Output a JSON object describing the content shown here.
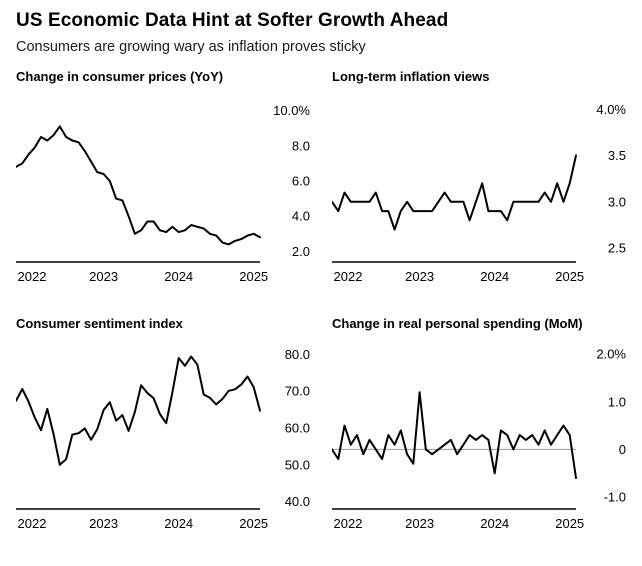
{
  "header": {
    "title": "US Economic Data Hint at Softer Growth Ahead",
    "subtitle": "Consumers are growing wary as inflation proves sticky"
  },
  "colors": {
    "line": "#000000",
    "axis": "#000000",
    "zero_line": "#999999",
    "background": "#ffffff",
    "text": "#000000"
  },
  "chart_data": [
    {
      "type": "line",
      "title": "Change in consumer prices (YoY)",
      "frequency": "monthly",
      "x_tick_labels": [
        "2022",
        "2023",
        "2024",
        "2025"
      ],
      "x_tick_positions": [
        2,
        14,
        26,
        38
      ],
      "y_ticks": [
        10.0,
        8.0,
        6.0,
        4.0,
        2.0
      ],
      "y_tick_labels": [
        "10.0%",
        "8.0",
        "6.0",
        "4.0",
        "2.0"
      ],
      "ylim": [
        1.4,
        10.6
      ],
      "zero_line": false,
      "legend": "none",
      "grid": "off",
      "values": [
        6.8,
        7.0,
        7.5,
        7.9,
        8.5,
        8.3,
        8.6,
        9.1,
        8.5,
        8.3,
        8.2,
        7.7,
        7.1,
        6.5,
        6.4,
        6.0,
        5.0,
        4.9,
        4.0,
        3.0,
        3.2,
        3.7,
        3.7,
        3.2,
        3.1,
        3.4,
        3.1,
        3.2,
        3.5,
        3.4,
        3.3,
        3.0,
        2.9,
        2.5,
        2.4,
        2.6,
        2.7,
        2.9,
        3.0,
        2.8
      ]
    },
    {
      "type": "line",
      "title": "Long-term inflation views",
      "frequency": "monthly",
      "x_tick_labels": [
        "2022",
        "2023",
        "2024",
        "2025"
      ],
      "x_tick_positions": [
        2,
        14,
        26,
        38
      ],
      "y_ticks": [
        4.0,
        3.5,
        3.0,
        2.5
      ],
      "y_tick_labels": [
        "4.0%",
        "3.5",
        "3.0",
        "2.5"
      ],
      "ylim": [
        2.35,
        4.1
      ],
      "zero_line": false,
      "legend": "none",
      "grid": "off",
      "values": [
        3.0,
        2.9,
        3.1,
        3.0,
        3.0,
        3.0,
        3.0,
        3.1,
        2.9,
        2.9,
        2.7,
        2.9,
        3.0,
        2.9,
        2.9,
        2.9,
        2.9,
        3.0,
        3.1,
        3.0,
        3.0,
        3.0,
        2.8,
        3.0,
        3.2,
        2.9,
        2.9,
        2.9,
        2.8,
        3.0,
        3.0,
        3.0,
        3.0,
        3.0,
        3.1,
        3.0,
        3.2,
        3.0,
        3.2,
        3.5
      ]
    },
    {
      "type": "line",
      "title": "Consumer sentiment index",
      "frequency": "monthly",
      "x_tick_labels": [
        "2022",
        "2023",
        "2024",
        "2025"
      ],
      "x_tick_positions": [
        2,
        14,
        26,
        38
      ],
      "y_ticks": [
        80.0,
        70.0,
        60.0,
        50.0,
        40.0
      ],
      "y_tick_labels": [
        "80.0",
        "70.0",
        "60.0",
        "50.0",
        "40.0"
      ],
      "ylim": [
        38,
        82
      ],
      "zero_line": false,
      "legend": "none",
      "grid": "off",
      "values": [
        67.4,
        70.6,
        67.2,
        62.8,
        59.4,
        65.2,
        58.4,
        50.0,
        51.5,
        58.2,
        58.6,
        59.9,
        56.8,
        59.7,
        64.9,
        67.0,
        62.0,
        63.5,
        59.2,
        64.4,
        71.6,
        69.5,
        68.1,
        63.8,
        61.3,
        69.7,
        79.0,
        76.9,
        79.4,
        77.2,
        69.1,
        68.2,
        66.4,
        67.9,
        70.1,
        70.5,
        71.8,
        74.0,
        71.1,
        64.7
      ]
    },
    {
      "type": "line",
      "title": "Change in real personal spending (MoM)",
      "frequency": "monthly",
      "x_tick_labels": [
        "2022",
        "2023",
        "2024",
        "2025"
      ],
      "x_tick_positions": [
        2,
        14,
        26,
        38
      ],
      "y_ticks": [
        2.0,
        1.0,
        0,
        -1.0
      ],
      "y_tick_labels": [
        "2.0%",
        "1.0",
        "0",
        "-1.0"
      ],
      "ylim": [
        -1.25,
        2.15
      ],
      "zero_line": true,
      "legend": "none",
      "grid": "off",
      "values": [
        0.0,
        -0.2,
        0.5,
        0.1,
        0.3,
        -0.1,
        0.2,
        0.0,
        -0.2,
        0.3,
        0.1,
        0.4,
        -0.1,
        -0.3,
        1.2,
        0.0,
        -0.1,
        0.0,
        0.1,
        0.2,
        -0.1,
        0.1,
        0.3,
        0.2,
        0.3,
        0.2,
        -0.5,
        0.4,
        0.3,
        0.0,
        0.3,
        0.2,
        0.3,
        0.1,
        0.4,
        0.1,
        0.3,
        0.5,
        0.3,
        -0.6
      ]
    }
  ]
}
